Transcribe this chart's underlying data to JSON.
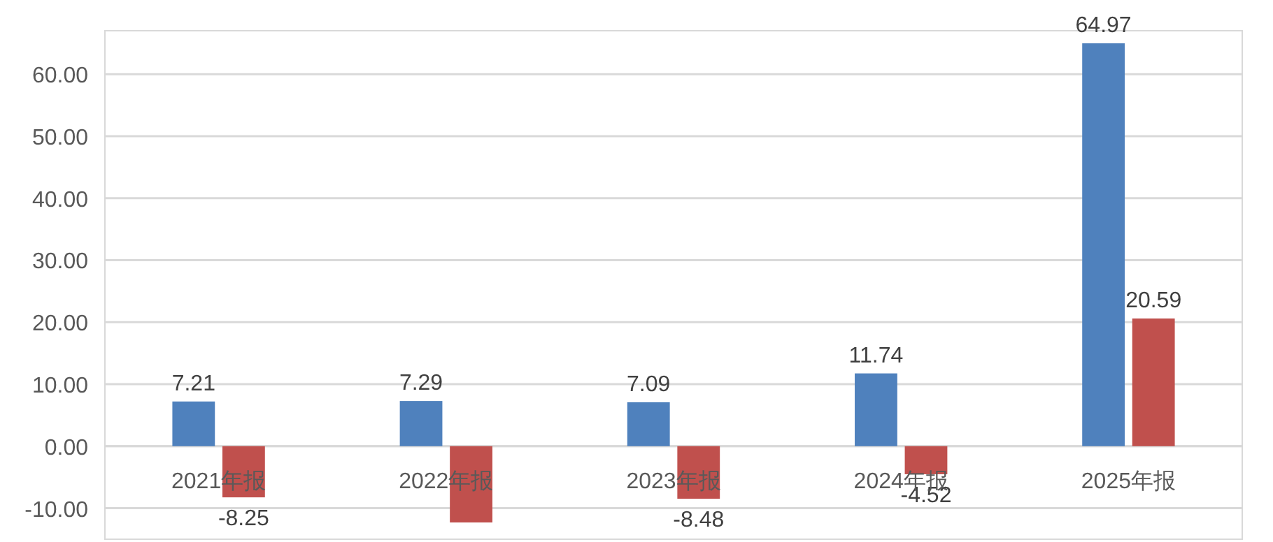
{
  "chart_data": {
    "type": "bar",
    "categories": [
      "2021年报",
      "2022年报",
      "2023年报",
      "2024年报",
      "2025年报"
    ],
    "series": [
      {
        "color": "#4f81bd",
        "values": [
          7.21,
          7.29,
          7.09,
          11.74,
          64.97
        ],
        "value_labels": [
          "7.21",
          "7.29",
          "7.09",
          "11.74",
          "64.97"
        ]
      },
      {
        "color": "#c0504d",
        "values": [
          -8.25,
          -12.3,
          -8.48,
          -4.52,
          20.59
        ],
        "value_labels": [
          "-8.25",
          null,
          "-8.48",
          "-4.52",
          "20.59"
        ]
      }
    ],
    "ylim": [
      -15,
      67
    ],
    "yticks": [
      {
        "value": -10,
        "label": "-10.00"
      },
      {
        "value": 0,
        "label": "0.00"
      },
      {
        "value": 10,
        "label": "10.00"
      },
      {
        "value": 20,
        "label": "20.00"
      },
      {
        "value": 30,
        "label": "30.00"
      },
      {
        "value": 40,
        "label": "40.00"
      },
      {
        "value": 50,
        "label": "50.00"
      },
      {
        "value": 60,
        "label": "60.00"
      }
    ],
    "grid": "y"
  }
}
